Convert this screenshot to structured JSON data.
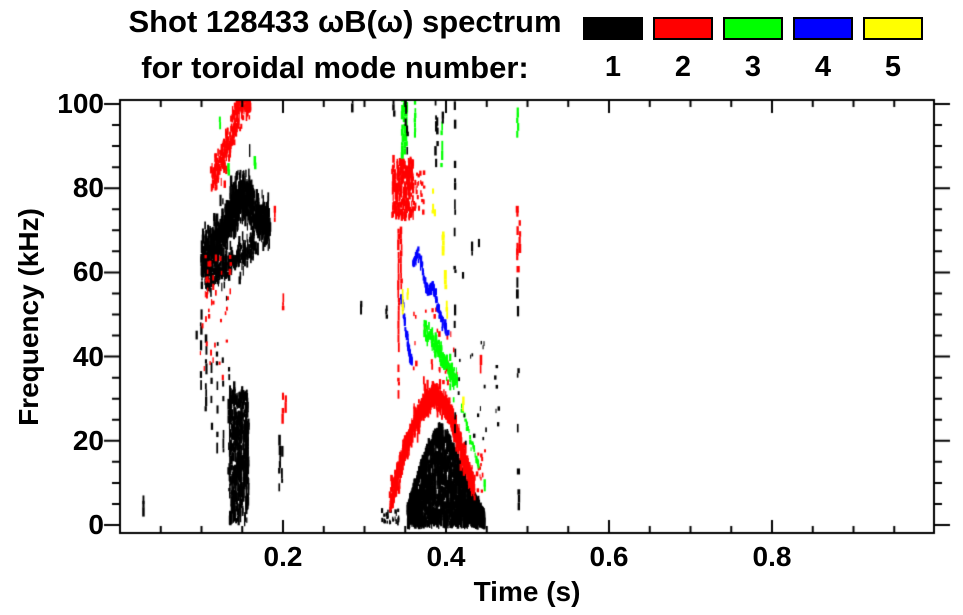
{
  "header": {
    "title": "Shot 128433 ωB(ω) spectrum",
    "subtitle": "for toroidal mode number:"
  },
  "legend": {
    "items": [
      {
        "label": "1",
        "color": "#000000"
      },
      {
        "label": "2",
        "color": "#ff0000"
      },
      {
        "label": "3",
        "color": "#00ff00"
      },
      {
        "label": "4",
        "color": "#0000ff"
      },
      {
        "label": "5",
        "color": "#ffff00"
      }
    ]
  },
  "chart_data": {
    "type": "scatter",
    "title": "Shot 128433 ωB(ω) spectrum",
    "subtitle": "for toroidal mode number:",
    "xlabel": "Time (s)",
    "ylabel": "Frequency (kHz)",
    "xlim": [
      0,
      1.0
    ],
    "ylim": [
      0,
      100
    ],
    "x_major_ticks": [
      0.2,
      0.4,
      0.6,
      0.8
    ],
    "x_tick_labels": [
      "0.2",
      "0.4",
      "0.6",
      "0.8"
    ],
    "x_minor_step": 0.05,
    "y_major_ticks": [
      0,
      20,
      40,
      60,
      80,
      100
    ],
    "y_tick_labels": [
      "0",
      "20",
      "40",
      "60",
      "80",
      "100"
    ],
    "y_minor_step": 5,
    "grid": false,
    "legend_position": "top-right",
    "modes": [
      {
        "n": 1,
        "color": "#000000"
      },
      {
        "n": 2,
        "color": "#ff0000"
      },
      {
        "n": 3,
        "color": "#00ff00"
      },
      {
        "n": 4,
        "color": "#0000ff"
      },
      {
        "n": 5,
        "color": "#ffff00"
      }
    ],
    "features": [
      {
        "mode": 1,
        "kind": "speck",
        "t": 0.029,
        "f": [
          2,
          6
        ]
      },
      {
        "mode": 1,
        "kind": "band",
        "path": [
          [
            0.1,
            62
          ],
          [
            0.11,
            65
          ],
          [
            0.122,
            68
          ],
          [
            0.134,
            73
          ],
          [
            0.146,
            77
          ],
          [
            0.156,
            78
          ],
          [
            0.166,
            74
          ],
          [
            0.176,
            72
          ],
          [
            0.184,
            71
          ]
        ],
        "hw": 7,
        "n": 900,
        "dh": [
          5,
          13
        ]
      },
      {
        "mode": 1,
        "kind": "band",
        "path": [
          [
            0.105,
            58
          ],
          [
            0.125,
            60
          ],
          [
            0.145,
            64
          ],
          [
            0.165,
            66
          ]
        ],
        "hw": 4,
        "n": 220,
        "dh": [
          4,
          10
        ]
      },
      {
        "mode": 1,
        "kind": "vlines",
        "lines": [
          [
            0.094,
            36,
            56
          ],
          [
            0.0995,
            30,
            50
          ],
          [
            0.1055,
            27,
            47
          ],
          [
            0.1125,
            20,
            46
          ],
          [
            0.1195,
            17,
            43
          ],
          [
            0.1265,
            14,
            40
          ],
          [
            0.1335,
            8,
            37
          ],
          [
            0.1405,
            5,
            33
          ],
          [
            0.148,
            4,
            30
          ]
        ],
        "gap": 0.45,
        "w": 2
      },
      {
        "mode": 1,
        "kind": "cloud",
        "t": [
          0.134,
          0.158
        ],
        "f": [
          1,
          32
        ],
        "n": 430,
        "dh": [
          5,
          12
        ]
      },
      {
        "mode": 1,
        "kind": "vlines",
        "lines": [
          [
            0.196,
            8,
            21
          ],
          [
            0.199,
            10,
            18
          ]
        ],
        "gap": 0.2,
        "w": 2
      },
      {
        "mode": 2,
        "kind": "cloud",
        "t": [
          0.104,
          0.136
        ],
        "f": [
          48,
          66
        ],
        "n": 26,
        "dh": [
          3,
          7
        ]
      },
      {
        "mode": 2,
        "kind": "cloud",
        "t": [
          0.098,
          0.132
        ],
        "f": [
          35,
          50
        ],
        "n": 14,
        "dh": [
          3,
          6
        ]
      },
      {
        "mode": 2,
        "kind": "band",
        "path": [
          [
            0.112,
            82
          ],
          [
            0.12,
            85
          ],
          [
            0.128,
            88
          ],
          [
            0.136,
            93
          ],
          [
            0.146,
            98
          ],
          [
            0.154,
            101
          ],
          [
            0.16,
            101
          ]
        ],
        "hw": 5,
        "n": 270,
        "dh": [
          4,
          9
        ]
      },
      {
        "mode": 2,
        "kind": "speck",
        "t": 0.19,
        "f": [
          72,
          75
        ]
      },
      {
        "mode": 2,
        "kind": "vlines",
        "lines": [
          [
            0.2,
            22,
            33
          ],
          [
            0.2035,
            25,
            31
          ]
        ],
        "gap": 0.3,
        "w": 2
      },
      {
        "mode": 2,
        "kind": "speck",
        "t": 0.2,
        "f": [
          51,
          55
        ]
      },
      {
        "mode": 3,
        "kind": "speck",
        "t": 0.123,
        "f": [
          94,
          97
        ]
      },
      {
        "mode": 3,
        "kind": "speck",
        "t": 0.133,
        "f": [
          83,
          85
        ]
      },
      {
        "mode": 3,
        "kind": "speck",
        "t": 0.166,
        "f": [
          84.5,
          86.5
        ]
      },
      {
        "mode": 1,
        "kind": "speck",
        "t": 0.296,
        "f": [
          50,
          52.5
        ]
      },
      {
        "mode": 1,
        "kind": "speck",
        "t": 0.327,
        "f": [
          49,
          51.5
        ]
      },
      {
        "mode": 1,
        "kind": "cloud",
        "t": [
          0.32,
          0.342
        ],
        "f": [
          0.3,
          3.5
        ],
        "n": 26,
        "dh": [
          3,
          5
        ]
      },
      {
        "mode": 1,
        "kind": "speck",
        "t": 0.356,
        "f": [
          0.5,
          4
        ]
      },
      {
        "mode": 1,
        "kind": "speck",
        "t": 0.285,
        "f": [
          98,
          101
        ]
      },
      {
        "mode": 1,
        "kind": "speck",
        "t": 0.336,
        "f": [
          97,
          101
        ]
      },
      {
        "mode": 1,
        "kind": "fill",
        "t": [
          0.353,
          0.447
        ],
        "top": [
          [
            0.353,
            4
          ],
          [
            0.363,
            10
          ],
          [
            0.373,
            16
          ],
          [
            0.383,
            21
          ],
          [
            0.393,
            23
          ],
          [
            0.403,
            21
          ],
          [
            0.413,
            16
          ],
          [
            0.423,
            11
          ],
          [
            0.433,
            7
          ],
          [
            0.447,
            2
          ]
        ],
        "bottom": 0.3,
        "n": 1550,
        "dh": [
          4,
          12
        ]
      },
      {
        "mode": 2,
        "kind": "cloud",
        "t": [
          0.334,
          0.36
        ],
        "f": [
          73,
          87
        ],
        "n": 240,
        "dh": [
          4,
          9
        ]
      },
      {
        "mode": 2,
        "kind": "vlines",
        "lines": [
          [
            0.342,
            30,
            74
          ],
          [
            0.345,
            56,
            70
          ]
        ],
        "gap": 0.12,
        "w": 2
      },
      {
        "mode": 2,
        "kind": "cloud",
        "t": [
          0.36,
          0.374
        ],
        "f": [
          74,
          84
        ],
        "n": 24,
        "dh": [
          3,
          6
        ]
      },
      {
        "mode": 2,
        "kind": "band",
        "path": [
          [
            0.332,
            6
          ],
          [
            0.34,
            11
          ],
          [
            0.348,
            17
          ],
          [
            0.357,
            22
          ],
          [
            0.367,
            26
          ],
          [
            0.377,
            29
          ],
          [
            0.387,
            31
          ],
          [
            0.397,
            29
          ],
          [
            0.407,
            25
          ],
          [
            0.417,
            19
          ],
          [
            0.427,
            13
          ],
          [
            0.435,
            9
          ]
        ],
        "hw": 3.5,
        "n": 880,
        "dh": [
          4,
          10
        ]
      },
      {
        "mode": 2,
        "kind": "cloud",
        "t": [
          0.36,
          0.415
        ],
        "f": [
          33,
          52
        ],
        "n": 26,
        "dh": [
          3,
          6
        ]
      },
      {
        "mode": 2,
        "kind": "speck",
        "t": 0.443,
        "f": [
          36,
          40
        ]
      },
      {
        "mode": 2,
        "kind": "cloud",
        "t": [
          0.428,
          0.448
        ],
        "f": [
          8,
          18
        ],
        "n": 14,
        "dh": [
          3,
          5
        ]
      },
      {
        "mode": 3,
        "kind": "vlines",
        "lines": [
          [
            0.3465,
            87,
            101
          ],
          [
            0.349,
            88,
            101
          ],
          [
            0.3515,
            90,
            101
          ]
        ],
        "gap": 0.18,
        "w": 2.5
      },
      {
        "mode": 3,
        "kind": "vlines",
        "lines": [
          [
            0.362,
            92,
            101
          ]
        ],
        "gap": 0.25,
        "w": 2
      },
      {
        "mode": 3,
        "kind": "vlines",
        "lines": [
          [
            0.395,
            85,
            98
          ]
        ],
        "gap": 0.45,
        "w": 2
      },
      {
        "mode": 3,
        "kind": "band",
        "path": [
          [
            0.373,
            47
          ],
          [
            0.381,
            45
          ],
          [
            0.389,
            42
          ],
          [
            0.397,
            39
          ],
          [
            0.405,
            36
          ],
          [
            0.413,
            34
          ]
        ],
        "hw": 2.8,
        "n": 180,
        "dh": [
          4,
          8
        ]
      },
      {
        "mode": 3,
        "kind": "band",
        "path": [
          [
            0.419,
            28
          ],
          [
            0.425,
            24
          ],
          [
            0.431,
            20
          ],
          [
            0.437,
            16
          ],
          [
            0.443,
            13
          ]
        ],
        "hw": 1.5,
        "n": 30,
        "dh": [
          3,
          5
        ]
      },
      {
        "mode": 3,
        "kind": "speck",
        "t": 0.447,
        "f": [
          8,
          10
        ]
      },
      {
        "mode": 4,
        "kind": "band",
        "path": [
          [
            0.346,
            54
          ],
          [
            0.35,
            47
          ],
          [
            0.354,
            42
          ],
          [
            0.358,
            38.5
          ]
        ],
        "hw": 1.4,
        "n": 60,
        "dh": [
          4,
          7
        ]
      },
      {
        "mode": 4,
        "kind": "band",
        "path": [
          [
            0.36,
            62
          ],
          [
            0.366,
            65
          ],
          [
            0.372,
            60
          ],
          [
            0.378,
            55
          ],
          [
            0.384,
            57
          ],
          [
            0.39,
            52
          ],
          [
            0.396,
            48
          ],
          [
            0.402,
            46
          ]
        ],
        "hw": 1.4,
        "n": 130,
        "dh": [
          4,
          7
        ]
      },
      {
        "mode": 5,
        "kind": "vlines",
        "lines": [
          [
            0.3845,
            74,
            80
          ],
          [
            0.3865,
            71,
            74.5
          ]
        ],
        "gap": 0.15,
        "w": 2.5
      },
      {
        "mode": 5,
        "kind": "vlines",
        "lines": [
          [
            0.397,
            64,
            69
          ],
          [
            0.3995,
            56,
            60.5
          ]
        ],
        "gap": 0.15,
        "w": 2.5
      },
      {
        "mode": 5,
        "kind": "speck",
        "t": 0.3465,
        "f": [
          50,
          55
        ]
      },
      {
        "mode": 5,
        "kind": "speck",
        "t": 0.353,
        "f": [
          53.5,
          55.5
        ]
      },
      {
        "mode": 5,
        "kind": "speck",
        "t": 0.401,
        "f": [
          49,
          52
        ]
      },
      {
        "mode": 5,
        "kind": "speck",
        "t": 0.421,
        "f": [
          27,
          29.5
        ]
      },
      {
        "mode": 1,
        "kind": "vlines",
        "lines": [
          [
            0.3505,
            93,
            101
          ],
          [
            0.3525,
            88,
            94
          ]
        ],
        "gap": 0.3,
        "w": 2
      },
      {
        "mode": 1,
        "kind": "vlines",
        "lines": [
          [
            0.3875,
            85,
            101
          ],
          [
            0.3895,
            90,
            97
          ],
          [
            0.396,
            93,
            99
          ]
        ],
        "gap": 0.35,
        "w": 2
      },
      {
        "mode": 1,
        "kind": "vlines",
        "lines": [
          [
            0.411,
            12,
            101
          ]
        ],
        "gap": 0.55,
        "w": 2
      },
      {
        "mode": 1,
        "kind": "vlines",
        "lines": [
          [
            0.4205,
            54,
            60
          ],
          [
            0.432,
            64,
            68
          ],
          [
            0.44,
            66,
            68
          ]
        ],
        "gap": 0.3,
        "w": 2
      },
      {
        "mode": 1,
        "kind": "cloud",
        "t": [
          0.415,
          0.465
        ],
        "f": [
          18,
          45
        ],
        "n": 22,
        "dh": [
          3,
          5
        ]
      },
      {
        "mode": 1,
        "kind": "vlines",
        "lines": [
          [
            0.488,
            43,
            59
          ],
          [
            0.4895,
            0.5,
            8
          ],
          [
            0.4885,
            12,
            17
          ]
        ],
        "gap": 0.35,
        "w": 2.5
      },
      {
        "mode": 1,
        "kind": "speck",
        "t": 0.4885,
        "f": [
          22,
          24
        ]
      },
      {
        "mode": 1,
        "kind": "speck",
        "t": 0.4885,
        "f": [
          35,
          37
        ]
      },
      {
        "mode": 2,
        "kind": "vlines",
        "lines": [
          [
            0.488,
            60,
            75
          ],
          [
            0.4905,
            63,
            72
          ]
        ],
        "gap": 0.2,
        "w": 2.5
      },
      {
        "mode": 3,
        "kind": "vlines",
        "lines": [
          [
            0.488,
            92,
            98
          ]
        ],
        "gap": 0.25,
        "w": 2
      }
    ]
  }
}
